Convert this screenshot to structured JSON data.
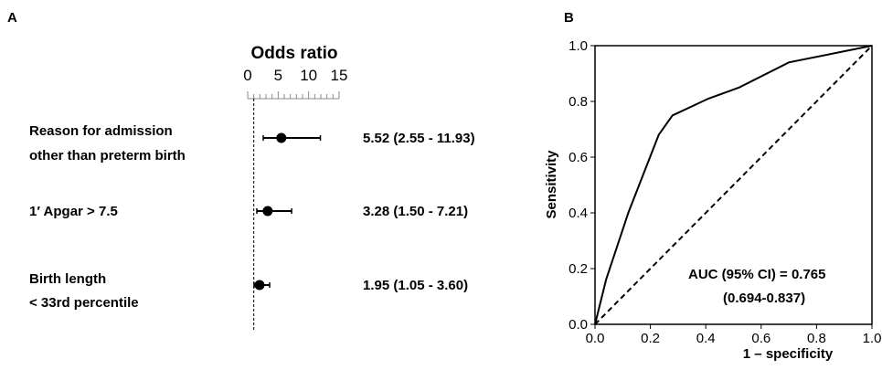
{
  "panel_a": {
    "label": "A",
    "chart_data": {
      "type": "forest",
      "title": "Odds ratio",
      "xlim": [
        0,
        15
      ],
      "xticks": [
        0,
        5,
        10,
        15
      ],
      "reference_line": 1,
      "rows": [
        {
          "label_lines": [
            "Reason for admission",
            "other than preterm birth"
          ],
          "or": 5.52,
          "lo": 2.55,
          "hi": 11.93,
          "text": "5.52 (2.55 - 11.93)"
        },
        {
          "label_lines": [
            "1′ Apgar > 7.5"
          ],
          "or": 3.28,
          "lo": 1.5,
          "hi": 7.21,
          "text": "3.28 (1.50 - 7.21)"
        },
        {
          "label_lines": [
            "Birth length",
            "< 33rd percentile"
          ],
          "or": 1.95,
          "lo": 1.05,
          "hi": 3.6,
          "text": "1.95 (1.05 - 3.60)"
        }
      ]
    }
  },
  "panel_b": {
    "label": "B",
    "chart_data": {
      "type": "line",
      "xlabel": "1 – specificity",
      "ylabel": "Sensitivity",
      "xlim": [
        0,
        1
      ],
      "ylim": [
        0,
        1
      ],
      "xticks": [
        "0.0",
        "0.2",
        "0.4",
        "0.6",
        "0.8",
        "1.0"
      ],
      "yticks": [
        "0.0",
        "0.2",
        "0.4",
        "0.6",
        "0.8",
        "1.0"
      ],
      "series": [
        {
          "x": [
            0,
            0.04,
            0.12,
            0.23,
            0.28,
            0.41,
            0.52,
            0.7,
            1.0
          ],
          "y": [
            0,
            0.16,
            0.4,
            0.68,
            0.75,
            0.81,
            0.85,
            0.94,
            1.0
          ],
          "style": "solid"
        },
        {
          "x": [
            0,
            1
          ],
          "y": [
            0,
            1
          ],
          "style": "dashed"
        }
      ],
      "annotation_lines": [
        "AUC (95% CI) = 0.765",
        "(0.694-0.837)"
      ]
    }
  }
}
